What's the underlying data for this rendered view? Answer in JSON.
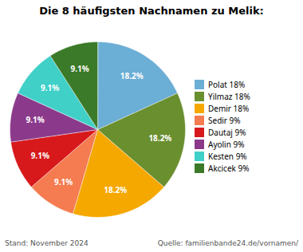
{
  "chart_data": {
    "type": "pie",
    "title": "Die 8 häufigsten Nachnamen zu Melik:",
    "categories": [
      "Polat 18%",
      "Yilmaz 18%",
      "Demir 18%",
      "Sedir 9%",
      "Dautaj 9%",
      "Ayolin 9%",
      "Kesten 9%",
      "Akcicek 9%"
    ],
    "values": [
      18.2,
      18.2,
      18.2,
      9.1,
      9.1,
      9.1,
      9.1,
      9.1
    ],
    "value_labels": [
      "18.2%",
      "18.2%",
      "18.2%",
      "9.1%",
      "9.1%",
      "9.1%",
      "9.1%",
      "9.1%"
    ],
    "data_labels": true,
    "colors": [
      "#6baed6",
      "#6a8f2f",
      "#f5a800",
      "#f47c50",
      "#d7191c",
      "#8b3a8b",
      "#40d0c8",
      "#3a7a28"
    ],
    "legend": "right",
    "annotations": [
      "Stand: November 2024",
      "Quelle: familienbande24.de/vornamen/"
    ]
  }
}
